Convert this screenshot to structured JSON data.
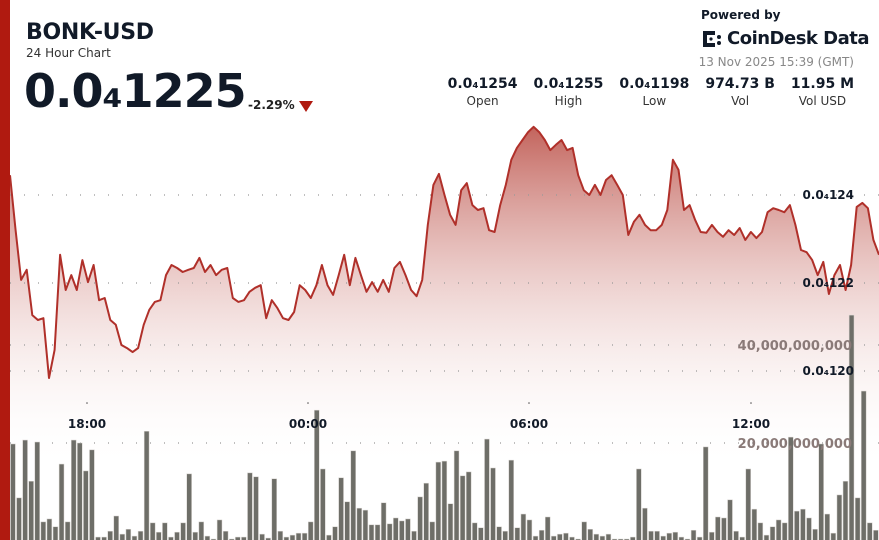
{
  "header": {
    "title": "BONK-USD",
    "subtitle": "24 Hour Chart",
    "price": "0.0₄1225",
    "change": "-2.29%",
    "change_direction": "down",
    "powered_by": "Powered by",
    "brand": "CoinDesk Data",
    "timestamp": "13 Nov 2025 15:39 (GMT)"
  },
  "stats": [
    {
      "value": "0.0₄1254",
      "label": "Open"
    },
    {
      "value": "0.0₄1255",
      "label": "High"
    },
    {
      "value": "0.0₄1198",
      "label": "Low"
    },
    {
      "value": "974.73 B",
      "label": "Vol"
    },
    {
      "value": "11.95 M",
      "label": "Vol USD"
    }
  ],
  "colors": {
    "accent": "#b01a10",
    "line": "#b0302a",
    "area_top": "#bf5a52",
    "bar": "#6e6e68",
    "volume_label": "#8a7a78"
  },
  "chart_data": {
    "type": "line+bar",
    "grid": "dotted horizontal",
    "x_ticks": [
      "18:00",
      "00:00",
      "06:00",
      "12:00"
    ],
    "price_ticks": [
      {
        "value": 1.24e-05,
        "label": "0.0₄124"
      },
      {
        "value": 1.22e-05,
        "label": "0.0₄122"
      },
      {
        "value": 1.2e-05,
        "label": "0.0₄120"
      }
    ],
    "volume_ticks": [
      {
        "value": 40000000000,
        "label": "40,000,000,000"
      },
      {
        "value": 20000000000,
        "label": "20,000,000,000"
      }
    ],
    "price_series": [
      1.2445e-05,
      1.232e-05,
      1.2207e-05,
      1.223e-05,
      1.2127e-05,
      1.2116e-05,
      1.212e-05,
      1.1984e-05,
      1.2048e-05,
      1.2264e-05,
      1.2184e-05,
      1.2218e-05,
      1.2184e-05,
      1.2252e-05,
      1.2202e-05,
      1.2241e-05,
      1.2161e-05,
      1.2166e-05,
      1.2116e-05,
      1.2105e-05,
      1.2059e-05,
      1.2052e-05,
      1.2043e-05,
      1.2052e-05,
      1.2105e-05,
      1.2139e-05,
      1.2157e-05,
      1.2161e-05,
      1.2218e-05,
      1.2241e-05,
      1.2234e-05,
      1.2225e-05,
      1.223e-05,
      1.2234e-05,
      1.2257e-05,
      1.2225e-05,
      1.2241e-05,
      1.2218e-05,
      1.223e-05,
      1.2234e-05,
      1.2166e-05,
      1.2157e-05,
      1.2161e-05,
      1.218e-05,
      1.2189e-05,
      1.2195e-05,
      1.212e-05,
      1.2161e-05,
      1.2143e-05,
      1.212e-05,
      1.2116e-05,
      1.2134e-05,
      1.2195e-05,
      1.2184e-05,
      1.2166e-05,
      1.2195e-05,
      1.2241e-05,
      1.2195e-05,
      1.2173e-05,
      1.2218e-05,
      1.2264e-05,
      1.2195e-05,
      1.2257e-05,
      1.2218e-05,
      1.218e-05,
      1.2202e-05,
      1.218e-05,
      1.2207e-05,
      1.218e-05,
      1.2234e-05,
      1.2248e-05,
      1.2218e-05,
      1.2184e-05,
      1.217e-05,
      1.2207e-05,
      1.2332e-05,
      1.2423e-05,
      1.2448e-05,
      1.24e-05,
      1.2355e-05,
      1.2332e-05,
      1.2411e-05,
      1.2427e-05,
      1.2377e-05,
      1.2366e-05,
      1.237e-05,
      1.232e-05,
      1.2316e-05,
      1.2377e-05,
      1.2423e-05,
      1.248e-05,
      1.2507e-05,
      1.2525e-05,
      1.2543e-05,
      1.2555e-05,
      1.2543e-05,
      1.2525e-05,
      1.2502e-05,
      1.2514e-05,
      1.2525e-05,
      1.2502e-05,
      1.2507e-05,
      1.2445e-05,
      1.2411e-05,
      1.24e-05,
      1.2423e-05,
      1.24e-05,
      1.2434e-05,
      1.2445e-05,
      1.2423e-05,
      1.24e-05,
      1.2309e-05,
      1.2339e-05,
      1.2355e-05,
      1.2332e-05,
      1.232e-05,
      1.232e-05,
      1.2332e-05,
      1.2366e-05,
      1.248e-05,
      1.2457e-05,
      1.2366e-05,
      1.2377e-05,
      1.2343e-05,
      1.2316e-05,
      1.2314e-05,
      1.2332e-05,
      1.2316e-05,
      1.2305e-05,
      1.232e-05,
      1.2309e-05,
      1.2325e-05,
      1.2298e-05,
      1.2316e-05,
      1.2302e-05,
      1.2316e-05,
      1.2361e-05,
      1.237e-05,
      1.2366e-05,
      1.2361e-05,
      1.2377e-05,
      1.2332e-05,
      1.2275e-05,
      1.227e-05,
      1.2252e-05,
      1.2218e-05,
      1.2248e-05,
      1.2175e-05,
      1.2218e-05,
      1.2241e-05,
      1.2184e-05,
      1.2241e-05,
      1.2373e-05,
      1.2382e-05,
      1.237e-05,
      1.2298e-05,
      1.2264e-05
    ],
    "volume_series": [
      19800000000.0,
      8800000000.0,
      20600000000.0,
      12200000000.0,
      20200000000.0,
      3900000000.0,
      4500000000.0,
      2900000000.0,
      15700000000.0,
      3900000000.0,
      20600000000.0,
      20000000000.0,
      14300000000.0,
      18600000000.0,
      800000000.0,
      800000000.0,
      2000000000.0,
      5100000000.0,
      1400000000.0,
      2400000000.0,
      1000000000.0,
      2000000000.0,
      22400000000.0,
      3700000000.0,
      1800000000.0,
      3700000000.0,
      800000000.0,
      1800000000.0,
      3700000000.0,
      13700000000.0,
      1800000000.0,
      3900000000.0,
      1000000000.0,
      400000000.0,
      4300000000.0,
      2000000000.0,
      400000000.0,
      800000000.0,
      800000000.0,
      13900000000.0,
      13100000000.0,
      1400000000.0,
      600000000.0,
      12700000000.0,
      2000000000.0,
      800000000.0,
      1200000000.0,
      1600000000.0,
      1600000000.0,
      3900000000.0,
      26700000000.0,
      14700000000.0,
      1200000000.0,
      2900000000.0,
      12900000000.0,
      8000000000.0,
      18400000000.0,
      6700000000.0,
      6300000000.0,
      3300000000.0,
      3300000000.0,
      7800000000.0,
      3500000000.0,
      4700000000.0,
      4100000000.0,
      4500000000.0,
      2000000000.0,
      9000000000.0,
      11800000000.0,
      3900000000.0,
      16100000000.0,
      16300000000.0,
      7600000000.0,
      18400000000.0,
      13300000000.0,
      14100000000.0,
      3700000000.0,
      2700000000.0,
      20800000000.0,
      14900000000.0,
      2900000000.0,
      2000000000.0,
      16500000000.0,
      2700000000.0,
      5500000000.0,
      4300000000.0,
      1000000000.0,
      2200000000.0,
      4900000000.0,
      1000000000.0,
      1400000000.0,
      1600000000.0,
      800000000.0,
      400000000.0,
      3900000000.0,
      2400000000.0,
      1400000000.0,
      1000000000.0,
      1400000000.0,
      400000000.0,
      400000000.0,
      400000000.0,
      800000000.0,
      14700000000.0,
      6700000000.0,
      2000000000.0,
      2000000000.0,
      1000000000.0,
      1600000000.0,
      1800000000.0,
      800000000.0,
      400000000.0,
      2200000000.0,
      800000000.0,
      19200000000.0,
      1800000000.0,
      4900000000.0,
      4700000000.0,
      8400000000.0,
      2000000000.0,
      800000000.0,
      14700000000.0,
      6500000000.0,
      3700000000.0,
      1200000000.0,
      2900000000.0,
      4300000000.0,
      3700000000.0,
      21200000000.0,
      6100000000.0,
      6500000000.0,
      4700000000.0,
      2400000000.0,
      19800000000.0,
      5500000000.0,
      1600000000.0,
      9400000000.0,
      12200000000.0,
      46100000000.0,
      8800000000.0,
      30600000000.0,
      3700000000.0,
      2200000000.0
    ]
  }
}
